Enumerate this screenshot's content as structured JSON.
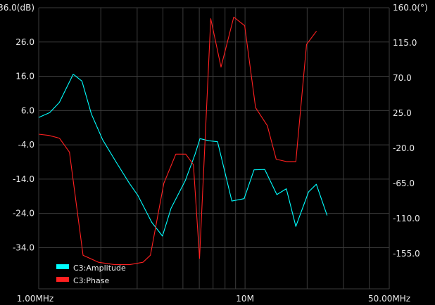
{
  "colors": {
    "background": "#000000",
    "grid": "#3c3c3c",
    "text": "#e8e8e8",
    "amplitude": "#00ffff",
    "phase": "#ff2020"
  },
  "chart_data": {
    "type": "line",
    "title": "",
    "x_scale": "log",
    "x_unit": "Hz",
    "xlim": [
      1000000,
      50000000
    ],
    "x_tick_labels": [
      "1.00MHz",
      "10M",
      "50.00MHz"
    ],
    "x_tick_values": [
      1000000,
      10000000,
      50000000
    ],
    "y_left": {
      "unit": "dB",
      "ylim": [
        -46,
        36
      ],
      "tick_labels": [
        "36.0(dB)",
        "26.0",
        "16.0",
        "6.0",
        "-4.0",
        "-14.0",
        "-24.0",
        "-34.0"
      ],
      "tick_values": [
        36,
        26,
        16,
        6,
        -4,
        -14,
        -24,
        -34
      ]
    },
    "y_right": {
      "unit": "°",
      "ylim": [
        -200,
        160
      ],
      "tick_labels": [
        "160.0(°)",
        "115.0",
        "70.0",
        "25.0",
        "-20.0",
        "-65.0",
        "-110.0",
        "-155.0"
      ],
      "tick_values": [
        160,
        115,
        70,
        25,
        -20,
        -65,
        -110,
        -155
      ]
    },
    "grid": true,
    "legend_position": "bottom-left",
    "series": [
      {
        "name": "C3:Amplitude",
        "axis": "left",
        "color": "#00ffff",
        "points": [
          [
            1000000,
            4
          ],
          [
            1130000,
            5.4
          ],
          [
            1260000,
            8.4
          ],
          [
            1470000,
            16.6
          ],
          [
            1620000,
            14.6
          ],
          [
            1800000,
            5
          ],
          [
            2040000,
            -2.5
          ],
          [
            2360000,
            -8.8
          ],
          [
            2750000,
            -15.2
          ],
          [
            3020000,
            -18.7
          ],
          [
            3530000,
            -26.6
          ],
          [
            3980000,
            -30.6
          ],
          [
            4380000,
            -22.5
          ],
          [
            5130000,
            -14.5
          ],
          [
            5720000,
            -6.8
          ],
          [
            6050000,
            -2.2
          ],
          [
            6700000,
            -2.8
          ],
          [
            7360000,
            -3.1
          ],
          [
            8630000,
            -20.4
          ],
          [
            9900000,
            -19.7
          ],
          [
            11060000,
            -11.3
          ],
          [
            12470000,
            -11.2
          ],
          [
            14260000,
            -18.5
          ],
          [
            15850000,
            -16.8
          ],
          [
            17630000,
            -27.8
          ],
          [
            20330000,
            -17.7
          ],
          [
            22150000,
            -15.5
          ],
          [
            24990000,
            -24.6
          ]
        ]
      },
      {
        "name": "C3:Phase",
        "axis": "right",
        "color": "#ff2020",
        "points": [
          [
            1000000,
            -2
          ],
          [
            1120000,
            -3.5
          ],
          [
            1260000,
            -7
          ],
          [
            1410000,
            -25
          ],
          [
            1640000,
            -157
          ],
          [
            1950000,
            -166
          ],
          [
            2330000,
            -169
          ],
          [
            2760000,
            -169
          ],
          [
            3200000,
            -166
          ],
          [
            3480000,
            -157
          ],
          [
            4040000,
            -65
          ],
          [
            4620000,
            -27.5
          ],
          [
            5160000,
            -27.5
          ],
          [
            5620000,
            -41
          ],
          [
            6020000,
            -161
          ],
          [
            6820000,
            146
          ],
          [
            7650000,
            84
          ],
          [
            8820000,
            148
          ],
          [
            9960000,
            137
          ],
          [
            11250000,
            32
          ],
          [
            12830000,
            9
          ],
          [
            14160000,
            -34
          ],
          [
            15850000,
            -37
          ],
          [
            17630000,
            -37
          ],
          [
            19860000,
            113
          ],
          [
            22200000,
            130
          ]
        ]
      }
    ]
  }
}
